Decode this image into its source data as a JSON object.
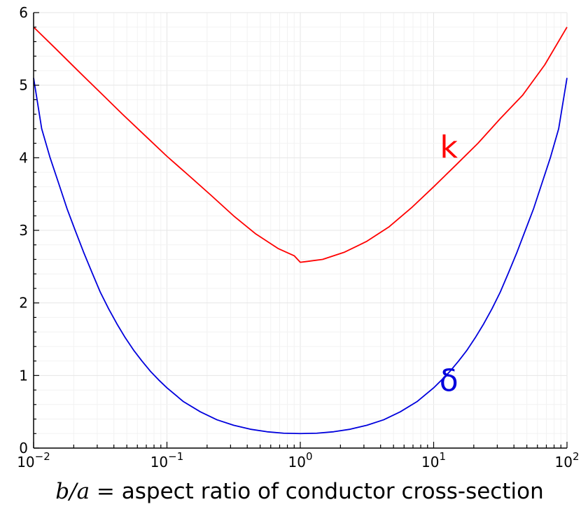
{
  "chart_data": {
    "type": "line",
    "title": "",
    "xlabel_math": "b/a =",
    "xlabel_text": " aspect ratio of conductor cross-section",
    "ylabel": "",
    "xscale": "log10",
    "xlim": [
      0.01,
      100
    ],
    "ylim": [
      0,
      6
    ],
    "grid": true,
    "x_ticks": [
      {
        "value": 0.01,
        "base": "10",
        "exp": "−2"
      },
      {
        "value": 0.1,
        "base": "10",
        "exp": "−1"
      },
      {
        "value": 1,
        "base": "10",
        "exp": "0"
      },
      {
        "value": 10,
        "base": "10",
        "exp": "1"
      },
      {
        "value": 100,
        "base": "10",
        "exp": "2"
      }
    ],
    "y_ticks": [
      "0",
      "1",
      "2",
      "3",
      "4",
      "5",
      "6"
    ],
    "series": [
      {
        "name": "k",
        "color": "#ff0000",
        "label_at": {
          "x": 13,
          "y": 4.15
        },
        "points": [
          [
            0.01,
            5.8
          ],
          [
            0.0147,
            5.5
          ],
          [
            0.0215,
            5.2
          ],
          [
            0.0316,
            4.9
          ],
          [
            0.0464,
            4.6
          ],
          [
            0.0681,
            4.31
          ],
          [
            0.1,
            4.02
          ],
          [
            0.147,
            3.75
          ],
          [
            0.215,
            3.48
          ],
          [
            0.316,
            3.2
          ],
          [
            0.464,
            2.95
          ],
          [
            0.681,
            2.75
          ],
          [
            0.9,
            2.65
          ],
          [
            1,
            2.56
          ],
          [
            1.11,
            2.57
          ],
          [
            1.47,
            2.6
          ],
          [
            2.15,
            2.7
          ],
          [
            3.16,
            2.85
          ],
          [
            4.64,
            3.05
          ],
          [
            6.81,
            3.31
          ],
          [
            10,
            3.6
          ],
          [
            14.7,
            3.9
          ],
          [
            21.5,
            4.2
          ],
          [
            31.6,
            4.54
          ],
          [
            46.4,
            4.86
          ],
          [
            68.1,
            5.28
          ],
          [
            100,
            5.8
          ]
        ]
      },
      {
        "name": "δ",
        "color": "#0000dd",
        "label_at": {
          "x": 13,
          "y": 0.93
        },
        "points": [
          [
            0.01,
            5.1
          ],
          [
            0.0115,
            4.4
          ],
          [
            0.0133,
            4.0
          ],
          [
            0.0154,
            3.65
          ],
          [
            0.0178,
            3.3
          ],
          [
            0.0205,
            3.0
          ],
          [
            0.0237,
            2.7
          ],
          [
            0.0274,
            2.42
          ],
          [
            0.0316,
            2.15
          ],
          [
            0.0365,
            1.92
          ],
          [
            0.0422,
            1.71
          ],
          [
            0.0487,
            1.52
          ],
          [
            0.0562,
            1.35
          ],
          [
            0.0649,
            1.2
          ],
          [
            0.075,
            1.06
          ],
          [
            0.0866,
            0.94
          ],
          [
            0.1,
            0.83
          ],
          [
            0.133,
            0.64
          ],
          [
            0.178,
            0.5
          ],
          [
            0.237,
            0.39
          ],
          [
            0.316,
            0.315
          ],
          [
            0.422,
            0.26
          ],
          [
            0.562,
            0.225
          ],
          [
            0.75,
            0.205
          ],
          [
            1,
            0.2
          ],
          [
            1.33,
            0.205
          ],
          [
            1.78,
            0.225
          ],
          [
            2.37,
            0.26
          ],
          [
            3.16,
            0.315
          ],
          [
            4.22,
            0.39
          ],
          [
            5.62,
            0.5
          ],
          [
            7.5,
            0.64
          ],
          [
            10,
            0.83
          ],
          [
            11.5,
            0.94
          ],
          [
            13.3,
            1.06
          ],
          [
            15.4,
            1.2
          ],
          [
            17.8,
            1.35
          ],
          [
            20.5,
            1.52
          ],
          [
            23.7,
            1.71
          ],
          [
            27.4,
            1.92
          ],
          [
            31.6,
            2.15
          ],
          [
            36.5,
            2.42
          ],
          [
            42.2,
            2.7
          ],
          [
            48.7,
            3.0
          ],
          [
            56.2,
            3.3
          ],
          [
            64.9,
            3.65
          ],
          [
            75,
            4.0
          ],
          [
            86.6,
            4.4
          ],
          [
            100,
            5.1
          ]
        ]
      }
    ]
  }
}
